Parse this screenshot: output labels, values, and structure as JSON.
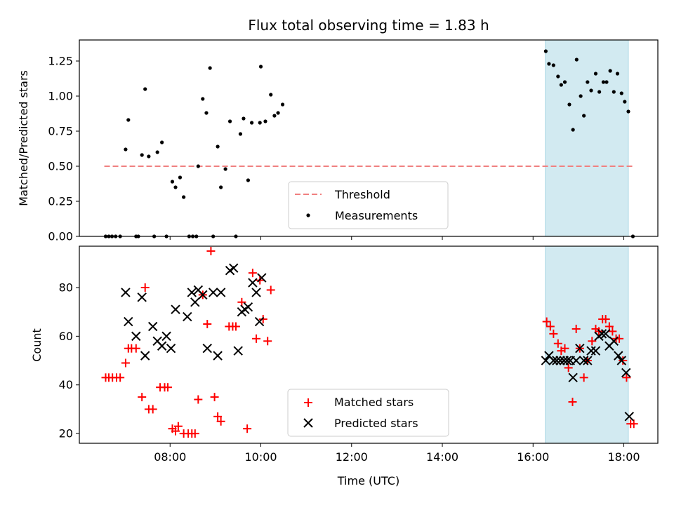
{
  "chart_data": {
    "type": "scatter",
    "title": "Flux total observing time = 1.83 h",
    "xlabel": "Time (UTC)",
    "x_ticks": [
      "08:00",
      "10:00",
      "12:00",
      "14:00",
      "16:00",
      "18:00"
    ],
    "x_tick_hours": [
      8,
      10,
      12,
      14,
      16,
      18
    ],
    "xlim_hours": [
      6.0,
      18.75
    ],
    "shaded_span_hours": [
      16.27,
      18.1
    ],
    "shade_color": "#add8e6",
    "panels": [
      {
        "ylabel": "Matched/Predicted stars",
        "ylim": [
          0,
          1.4
        ],
        "y_ticks": [
          0.0,
          0.25,
          0.5,
          0.75,
          1.0,
          1.25
        ],
        "y_tick_labels": [
          "0.00",
          "0.25",
          "0.50",
          "0.75",
          "1.00",
          "1.25"
        ],
        "threshold": {
          "name": "Threshold",
          "y": 0.5,
          "x_range_hours": [
            6.55,
            18.2
          ],
          "color": "#f08080"
        },
        "series": [
          {
            "name": "Measurements",
            "color": "#000000",
            "marker": "dot",
            "points": [
              [
                6.58,
                0
              ],
              [
                6.65,
                0
              ],
              [
                6.72,
                0
              ],
              [
                6.8,
                0
              ],
              [
                6.9,
                0
              ],
              [
                7.02,
                0.62
              ],
              [
                7.08,
                0.83
              ],
              [
                7.25,
                0
              ],
              [
                7.3,
                0
              ],
              [
                7.38,
                0.58
              ],
              [
                7.45,
                1.05
              ],
              [
                7.53,
                0.57
              ],
              [
                7.65,
                0
              ],
              [
                7.72,
                0.6
              ],
              [
                7.82,
                0.67
              ],
              [
                7.92,
                0
              ],
              [
                8.05,
                0.39
              ],
              [
                8.12,
                0.35
              ],
              [
                8.22,
                0.42
              ],
              [
                8.3,
                0.28
              ],
              [
                8.42,
                0
              ],
              [
                8.5,
                0
              ],
              [
                8.58,
                0
              ],
              [
                8.62,
                0.5
              ],
              [
                8.72,
                0.98
              ],
              [
                8.8,
                0.88
              ],
              [
                8.88,
                1.2
              ],
              [
                8.95,
                0
              ],
              [
                9.05,
                0.64
              ],
              [
                9.12,
                0.35
              ],
              [
                9.22,
                0.48
              ],
              [
                9.32,
                0.82
              ],
              [
                9.45,
                0
              ],
              [
                9.55,
                0.73
              ],
              [
                9.62,
                0.84
              ],
              [
                9.72,
                0.4
              ],
              [
                9.8,
                0.81
              ],
              [
                9.98,
                0.81
              ],
              [
                10.0,
                1.21
              ],
              [
                10.1,
                0.82
              ],
              [
                10.22,
                1.01
              ],
              [
                10.3,
                0.86
              ],
              [
                10.38,
                0.88
              ],
              [
                10.48,
                0.94
              ],
              [
                16.28,
                1.32
              ],
              [
                16.35,
                1.23
              ],
              [
                16.45,
                1.22
              ],
              [
                16.55,
                1.14
              ],
              [
                16.62,
                1.08
              ],
              [
                16.7,
                1.1
              ],
              [
                16.8,
                0.94
              ],
              [
                16.88,
                0.76
              ],
              [
                16.96,
                1.26
              ],
              [
                17.05,
                1.0
              ],
              [
                17.12,
                0.86
              ],
              [
                17.2,
                1.1
              ],
              [
                17.28,
                1.04
              ],
              [
                17.38,
                1.16
              ],
              [
                17.46,
                1.03
              ],
              [
                17.55,
                1.1
              ],
              [
                17.62,
                1.1
              ],
              [
                17.7,
                1.18
              ],
              [
                17.78,
                1.03
              ],
              [
                17.86,
                1.16
              ],
              [
                17.95,
                1.02
              ],
              [
                18.02,
                0.96
              ],
              [
                18.1,
                0.89
              ],
              [
                18.2,
                0
              ]
            ]
          }
        ],
        "legend": {
          "placement": "lower-center",
          "entries": [
            "Threshold",
            "Measurements"
          ]
        }
      },
      {
        "ylabel": "Count",
        "ylim": [
          16,
          97
        ],
        "y_ticks": [
          20,
          40,
          60,
          80
        ],
        "y_tick_labels": [
          "20",
          "40",
          "60",
          "80"
        ],
        "series": [
          {
            "name": "Matched stars",
            "color": "#ff0000",
            "marker": "plus",
            "points": [
              [
                6.58,
                43
              ],
              [
                6.65,
                43
              ],
              [
                6.73,
                43
              ],
              [
                6.82,
                43
              ],
              [
                6.9,
                43
              ],
              [
                7.02,
                49
              ],
              [
                7.08,
                55
              ],
              [
                7.15,
                55
              ],
              [
                7.25,
                55
              ],
              [
                7.38,
                35
              ],
              [
                7.45,
                80
              ],
              [
                7.53,
                30
              ],
              [
                7.62,
                30
              ],
              [
                7.78,
                39
              ],
              [
                7.88,
                39
              ],
              [
                7.95,
                39
              ],
              [
                8.05,
                22
              ],
              [
                8.12,
                21
              ],
              [
                8.18,
                23
              ],
              [
                8.3,
                20
              ],
              [
                8.4,
                20
              ],
              [
                8.48,
                20
              ],
              [
                8.55,
                20
              ],
              [
                8.62,
                34
              ],
              [
                8.72,
                77
              ],
              [
                8.82,
                65
              ],
              [
                8.9,
                95
              ],
              [
                8.98,
                35
              ],
              [
                9.05,
                27
              ],
              [
                9.12,
                25
              ],
              [
                9.3,
                64
              ],
              [
                9.38,
                64
              ],
              [
                9.45,
                64
              ],
              [
                9.58,
                74
              ],
              [
                9.7,
                22
              ],
              [
                9.82,
                86
              ],
              [
                9.9,
                59
              ],
              [
                9.98,
                83
              ],
              [
                10.05,
                67
              ],
              [
                10.15,
                58
              ],
              [
                10.22,
                79
              ],
              [
                16.3,
                66
              ],
              [
                16.38,
                64
              ],
              [
                16.45,
                61
              ],
              [
                16.55,
                57
              ],
              [
                16.62,
                54
              ],
              [
                16.7,
                55
              ],
              [
                16.78,
                47
              ],
              [
                16.87,
                33
              ],
              [
                16.95,
                63
              ],
              [
                17.03,
                55
              ],
              [
                17.12,
                43
              ],
              [
                17.2,
                50
              ],
              [
                17.3,
                58
              ],
              [
                17.38,
                63
              ],
              [
                17.45,
                62
              ],
              [
                17.53,
                67
              ],
              [
                17.6,
                67
              ],
              [
                17.68,
                64
              ],
              [
                17.75,
                62
              ],
              [
                17.83,
                59
              ],
              [
                17.9,
                59
              ],
              [
                17.98,
                50
              ],
              [
                18.06,
                43
              ],
              [
                18.15,
                24
              ],
              [
                18.22,
                24
              ]
            ]
          },
          {
            "name": "Predicted stars",
            "color": "#000000",
            "marker": "x",
            "points": [
              [
                7.02,
                78
              ],
              [
                7.08,
                66
              ],
              [
                7.25,
                60
              ],
              [
                7.38,
                76
              ],
              [
                7.45,
                52
              ],
              [
                7.62,
                64
              ],
              [
                7.72,
                58
              ],
              [
                7.82,
                56
              ],
              [
                7.92,
                60
              ],
              [
                8.02,
                55
              ],
              [
                8.12,
                71
              ],
              [
                8.38,
                68
              ],
              [
                8.48,
                78
              ],
              [
                8.55,
                74
              ],
              [
                8.62,
                79
              ],
              [
                8.72,
                77
              ],
              [
                8.82,
                55
              ],
              [
                8.95,
                78
              ],
              [
                9.05,
                52
              ],
              [
                9.12,
                78
              ],
              [
                9.32,
                87
              ],
              [
                9.4,
                88
              ],
              [
                9.5,
                54
              ],
              [
                9.58,
                70
              ],
              [
                9.65,
                71
              ],
              [
                9.72,
                72
              ],
              [
                9.82,
                82
              ],
              [
                9.9,
                78
              ],
              [
                9.97,
                66
              ],
              [
                10.02,
                84
              ],
              [
                16.28,
                50
              ],
              [
                16.35,
                52
              ],
              [
                16.45,
                50
              ],
              [
                16.52,
                50
              ],
              [
                16.6,
                50
              ],
              [
                16.68,
                50
              ],
              [
                16.75,
                50
              ],
              [
                16.82,
                50
              ],
              [
                16.88,
                43
              ],
              [
                16.95,
                50
              ],
              [
                17.03,
                55
              ],
              [
                17.12,
                50
              ],
              [
                17.2,
                50
              ],
              [
                17.28,
                54
              ],
              [
                17.38,
                54
              ],
              [
                17.45,
                60
              ],
              [
                17.52,
                61
              ],
              [
                17.6,
                61
              ],
              [
                17.68,
                56
              ],
              [
                17.78,
                58
              ],
              [
                17.88,
                52
              ],
              [
                17.95,
                50
              ],
              [
                18.05,
                45
              ],
              [
                18.12,
                27
              ]
            ]
          }
        ],
        "legend": {
          "placement": "lower-center",
          "entries": [
            "Matched stars",
            "Predicted stars"
          ]
        }
      }
    ]
  }
}
